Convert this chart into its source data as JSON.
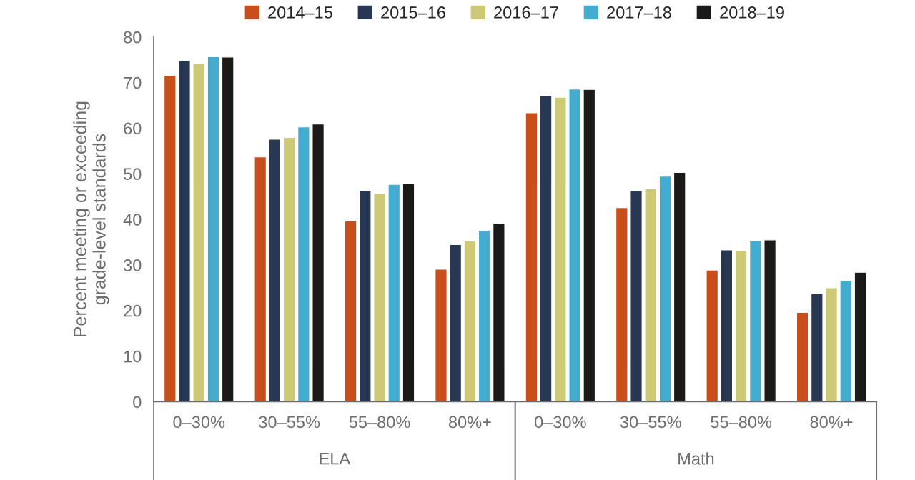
{
  "chart_data": {
    "type": "bar",
    "ylabel": "Percent meeting or exceeding\ngrade-level standards",
    "categories": [
      "0–30%",
      "30–55%",
      "55–80%",
      "80%+",
      "0–30%",
      "30–55%",
      "55–80%",
      "80%+"
    ],
    "series": [
      {
        "name": "2014–15",
        "color": "#c84f1c",
        "values": [
          71.6,
          53.7,
          39.7,
          29.1,
          63.4,
          42.6,
          28.9,
          19.6
        ]
      },
      {
        "name": "2015–16",
        "color": "#283853",
        "values": [
          74.9,
          57.6,
          46.4,
          34.5,
          67.1,
          46.3,
          33.3,
          23.7
        ]
      },
      {
        "name": "2016–17",
        "color": "#cdc974",
        "values": [
          74.2,
          58.0,
          45.7,
          35.3,
          66.8,
          46.7,
          33.1,
          25.0
        ]
      },
      {
        "name": "2017–18",
        "color": "#44adcf",
        "values": [
          75.7,
          60.3,
          47.7,
          37.6,
          68.6,
          49.5,
          35.3,
          26.6
        ]
      },
      {
        "name": "2018–19",
        "color": "#1b1a18",
        "values": [
          75.6,
          60.9,
          47.8,
          39.2,
          68.5,
          50.3,
          35.5,
          28.4
        ]
      }
    ],
    "annotations": [
      "ELA",
      "Math"
    ],
    "ylim": [
      0,
      80
    ],
    "yticks": [
      0,
      10,
      20,
      30,
      40,
      50,
      60,
      70,
      80
    ],
    "grid": false,
    "legend": "top"
  }
}
